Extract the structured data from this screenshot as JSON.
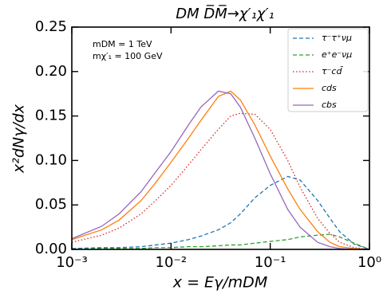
{
  "chart_data": {
    "type": "line",
    "title": "DM D̅M̅→χ′₁χ′₁",
    "annotations": [
      "mDM = 1 TeV",
      "mχ′₁ = 100 GeV"
    ],
    "xlabel": "x = Eγ/mDM",
    "ylabel": "x²dNγ/dx",
    "xscale": "log",
    "xlim": [
      0.001,
      1
    ],
    "xticks": [
      {
        "value": 0.001,
        "label": "10⁻³"
      },
      {
        "value": 0.01,
        "label": "10⁻²"
      },
      {
        "value": 0.1,
        "label": "10⁻¹"
      },
      {
        "value": 1,
        "label": "10⁰"
      }
    ],
    "ylim": [
      0,
      0.25
    ],
    "yticks": [
      {
        "value": 0,
        "label": "0.00"
      },
      {
        "value": 0.05,
        "label": "0.05"
      },
      {
        "value": 0.1,
        "label": "0.10"
      },
      {
        "value": 0.15,
        "label": "0.15"
      },
      {
        "value": 0.2,
        "label": "0.20"
      },
      {
        "value": 0.25,
        "label": "0.25"
      }
    ],
    "legend": "upper right",
    "x": [
      0.001,
      0.002,
      0.003,
      0.005,
      0.007,
      0.01,
      0.015,
      0.02,
      0.03,
      0.04,
      0.05,
      0.07,
      0.1,
      0.15,
      0.2,
      0.3,
      0.4,
      0.5,
      0.7,
      1
    ],
    "series": [
      {
        "name": "τ⁻τ⁺νμ",
        "color": "#1f77b4",
        "linestyle": "dashed",
        "values": [
          0.001,
          0.002,
          0.002,
          0.003,
          0.005,
          0.007,
          0.011,
          0.015,
          0.022,
          0.03,
          0.04,
          0.058,
          0.072,
          0.082,
          0.078,
          0.055,
          0.035,
          0.02,
          0.006,
          0
        ]
      },
      {
        "name": "e⁺e⁻νμ",
        "color": "#2ca02c",
        "linestyle": "dashed",
        "values": [
          0,
          0.001,
          0.001,
          0.001,
          0.002,
          0.002,
          0.003,
          0.003,
          0.004,
          0.005,
          0.005,
          0.007,
          0.009,
          0.011,
          0.014,
          0.016,
          0.017,
          0.014,
          0.007,
          0
        ]
      },
      {
        "name": "τ⁻cd̄",
        "color": "#d62728",
        "linestyle": "dotted",
        "values": [
          0.008,
          0.016,
          0.024,
          0.04,
          0.055,
          0.072,
          0.095,
          0.112,
          0.135,
          0.15,
          0.153,
          0.152,
          0.135,
          0.1,
          0.07,
          0.035,
          0.018,
          0.008,
          0.002,
          0
        ]
      },
      {
        "name": "cds",
        "color": "#ff7f0e",
        "linestyle": "solid",
        "values": [
          0.011,
          0.022,
          0.033,
          0.055,
          0.075,
          0.098,
          0.125,
          0.145,
          0.172,
          0.178,
          0.168,
          0.14,
          0.105,
          0.068,
          0.045,
          0.02,
          0.008,
          0.003,
          0.001,
          0
        ]
      },
      {
        "name": "cbs",
        "color": "#9467bd",
        "linestyle": "solid",
        "values": [
          0.012,
          0.026,
          0.04,
          0.065,
          0.087,
          0.11,
          0.14,
          0.16,
          0.178,
          0.175,
          0.16,
          0.125,
          0.085,
          0.045,
          0.025,
          0.008,
          0.003,
          0.001,
          0,
          0
        ]
      }
    ]
  }
}
